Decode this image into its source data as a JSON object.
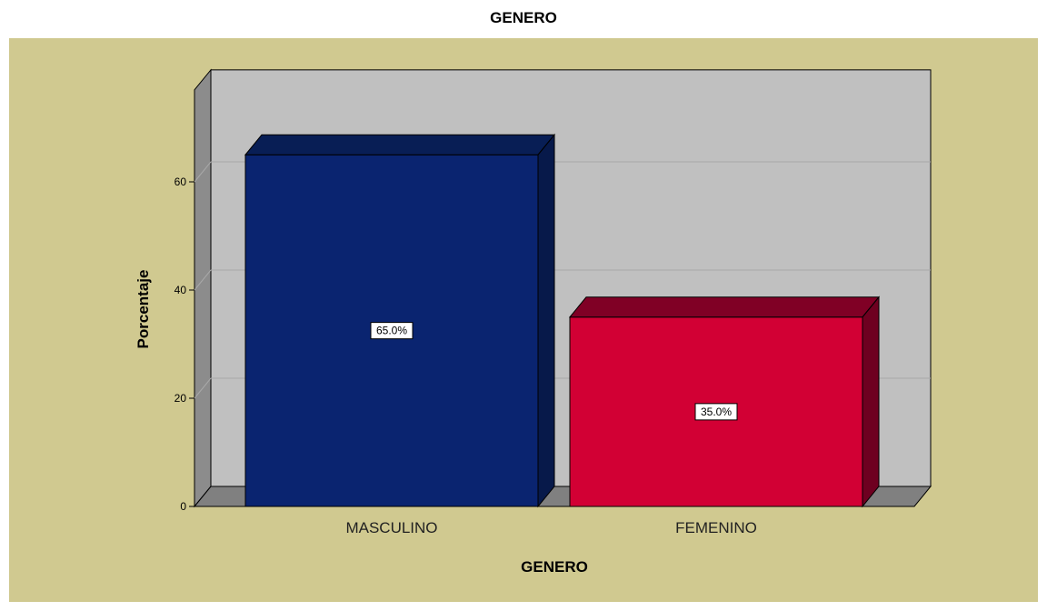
{
  "chart_data": {
    "type": "bar",
    "title": "GENERO",
    "xlabel": "GENERO",
    "ylabel": "Porcentaje",
    "categories": [
      "MASCULINO",
      "FEMENINO"
    ],
    "values": [
      65.0,
      35.0
    ],
    "data_labels": [
      "65.0%",
      "35.0%"
    ],
    "yticks": [
      "0",
      "20",
      "40",
      "60"
    ],
    "ylim": [
      0,
      77
    ],
    "grid": true,
    "three_d": true,
    "colors": {
      "bars": [
        "#0a2470",
        "#d20034"
      ],
      "bar_tops": [
        "#081e55",
        "#800025"
      ],
      "bar_sides": [
        "#07194a",
        "#6e0020"
      ],
      "plot_background": "#c0c0c0",
      "outer_background": "#d0c990",
      "floor": "#808080"
    }
  }
}
